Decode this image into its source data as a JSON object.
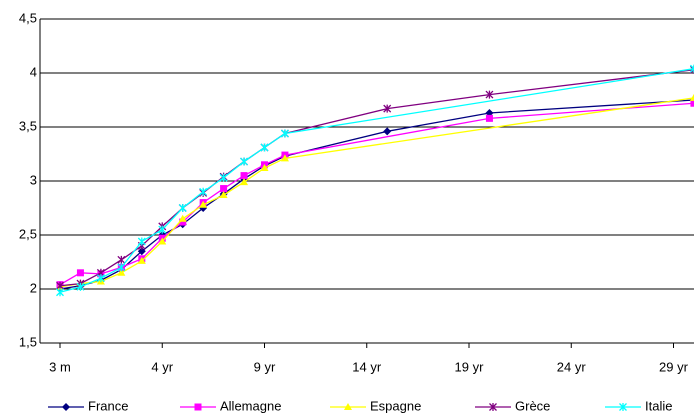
{
  "chart_data": {
    "type": "line",
    "xlim": [
      0.25,
      30
    ],
    "xticks": [
      {
        "value": 0.25,
        "label": "3 m"
      },
      {
        "value": 4,
        "label": "4 yr"
      },
      {
        "value": 9,
        "label": "9 yr"
      },
      {
        "value": 14,
        "label": "14 yr"
      },
      {
        "value": 19,
        "label": "19 yr"
      },
      {
        "value": 24,
        "label": "24 yr"
      },
      {
        "value": 29,
        "label": "29 yr"
      }
    ],
    "ylim": [
      1.5,
      4.5
    ],
    "yticks": [
      {
        "value": 1.5,
        "label": "1,5"
      },
      2,
      {
        "value": 2.5,
        "label": "2,5"
      },
      3,
      {
        "value": 3.5,
        "label": "3,5"
      },
      4,
      {
        "value": 4.5,
        "label": "4,5"
      }
    ],
    "grid": true,
    "legend": "bottom",
    "series": [
      {
        "name": "France",
        "color": "#000080",
        "marker": "diamond",
        "x": [
          0.25,
          0.5,
          1,
          2,
          3,
          4,
          5,
          6,
          7,
          8,
          9,
          10,
          15,
          20,
          30
        ],
        "values": [
          2.0,
          2.03,
          2.08,
          2.18,
          2.35,
          2.5,
          2.6,
          2.75,
          2.88,
          3.02,
          3.14,
          3.23,
          3.46,
          3.63,
          3.75
        ]
      },
      {
        "name": "Allemagne",
        "color": "#ff00ff",
        "marker": "square",
        "x": [
          0.25,
          0.5,
          1,
          2,
          3,
          4,
          5,
          6,
          7,
          8,
          9,
          10,
          20,
          30
        ],
        "values": [
          2.04,
          2.15,
          2.14,
          2.2,
          2.28,
          2.47,
          2.62,
          2.8,
          2.93,
          3.05,
          3.15,
          3.24,
          3.58,
          3.72
        ]
      },
      {
        "name": "Espagne",
        "color": "#ffff00",
        "marker": "triangle",
        "x": [
          0.25,
          0.5,
          1,
          2,
          3,
          4,
          5,
          6,
          7,
          8,
          9,
          10,
          30
        ],
        "values": [
          2.02,
          2.05,
          2.07,
          2.15,
          2.26,
          2.44,
          2.65,
          2.78,
          2.87,
          2.99,
          3.12,
          3.21,
          3.77
        ]
      },
      {
        "name": "Grèce",
        "color": "#800080",
        "marker": "star",
        "x": [
          0.25,
          0.5,
          1,
          2,
          3,
          4,
          5,
          6,
          7,
          8,
          9,
          10,
          15,
          20,
          30
        ],
        "values": [
          2.03,
          2.05,
          2.15,
          2.27,
          2.4,
          2.58,
          2.75,
          2.89,
          3.04,
          3.18,
          3.31,
          3.44,
          3.67,
          3.8,
          4.03
        ]
      },
      {
        "name": "Italie",
        "color": "#00ffff",
        "marker": "star",
        "x": [
          0.25,
          0.5,
          1,
          2,
          3,
          4,
          5,
          6,
          7,
          8,
          9,
          10,
          30
        ],
        "values": [
          1.97,
          2.02,
          2.1,
          2.2,
          2.44,
          2.55,
          2.75,
          2.9,
          3.03,
          3.18,
          3.31,
          3.44,
          4.04
        ]
      }
    ]
  }
}
